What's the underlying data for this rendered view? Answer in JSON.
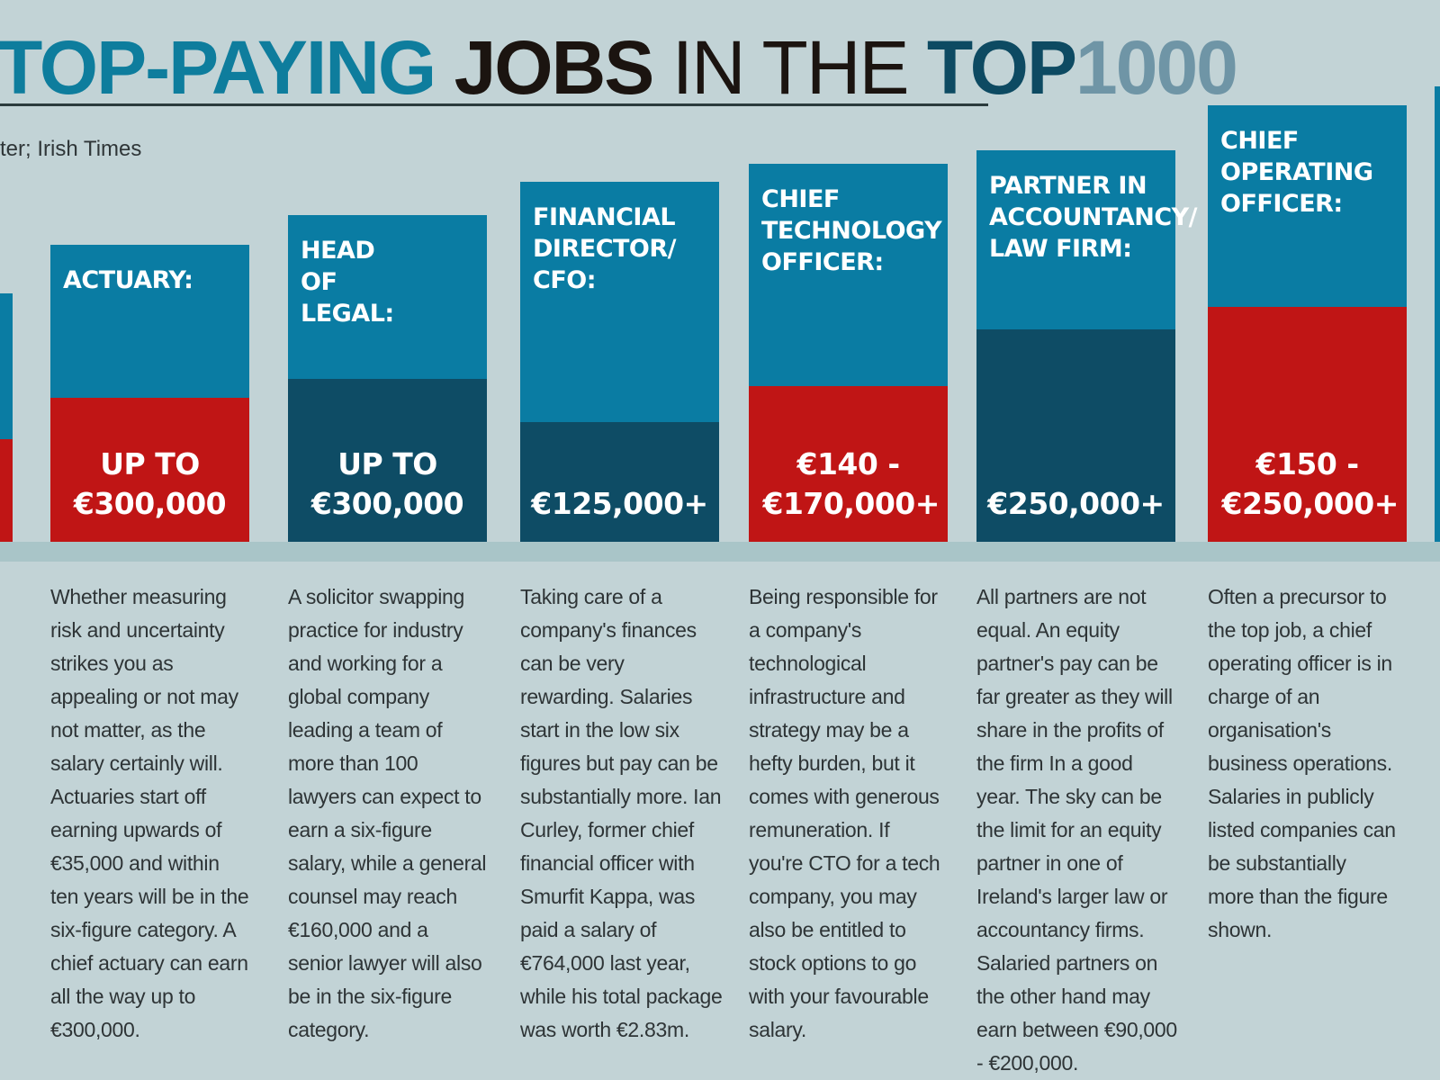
{
  "header": {
    "title_part1": "TOP-PAYING",
    "title_part2": "JOBS",
    "title_part3": "IN THE",
    "title_part4": "TOP",
    "title_part5": "1000",
    "source": "ter; Irish Times"
  },
  "colors": {
    "background": "#c2d3d6",
    "bar_blue": "#0a7ca3",
    "salary_red": "#c01515",
    "salary_navy": "#0e4c65"
  },
  "jobs": [
    {
      "label": "ACTUARY:",
      "amount": "UP TO €300,000",
      "bottom_color": "red",
      "description": "Whether measuring risk and uncertainty strikes you as appealing or not may not matter, as the salary certainly will. Actuaries start off earning upwards of €35,000 and within ten years will be in the six-figure category. A chief actuary can earn all the way up to €300,000."
    },
    {
      "label": "HEAD OF LEGAL:",
      "amount": "UP TO €300,000",
      "bottom_color": "navy",
      "description": "A solicitor swapping practice for industry and working for a global company leading a team of more than 100 lawyers can expect to earn a six-figure salary, while a general counsel may reach €160,000 and a senior lawyer will also be in the six-figure category."
    },
    {
      "label": "FINANCIAL DIRECTOR/ CFO:",
      "amount": "€125,000+",
      "bottom_color": "navy",
      "description": "Taking care of a company's finances can be very rewarding. Salaries start in the low six figures but pay can be substantially more. Ian Curley, former chief financial officer with Smurfit Kappa, was paid a salary of €764,000 last year, while his total package was worth €2.83m."
    },
    {
      "label": "CHIEF TECHNOLOGY OFFICER:",
      "amount": "€140 - €170,000+",
      "bottom_color": "red",
      "description": "Being responsible for a company's technological infrastructure and strategy may be a hefty burden, but it comes with generous remuneration. If you're CTO for a tech company, you may also be entitled to stock options to go with your favourable salary."
    },
    {
      "label": "PARTNER IN ACCOUNTANCY/ LAW FIRM:",
      "amount": "€250,000+",
      "bottom_color": "navy",
      "description": "All partners are not equal. An equity partner's pay can be far greater as they will share in the profits of the firm In a good year. The sky can be the limit for an equity partner in one of Ireland's larger law or accountancy firms. Salaried partners on the other hand may earn between €90,000 - €200,000."
    },
    {
      "label": "CHIEF OPERATING OFFICER:",
      "amount": "€150 - €250,000+",
      "bottom_color": "red",
      "description": "Often a precursor to the top job, a chief operating officer is in charge of an organisation's business operations. Salaries in publicly listed companies can be substantially more than the figure shown."
    }
  ]
}
